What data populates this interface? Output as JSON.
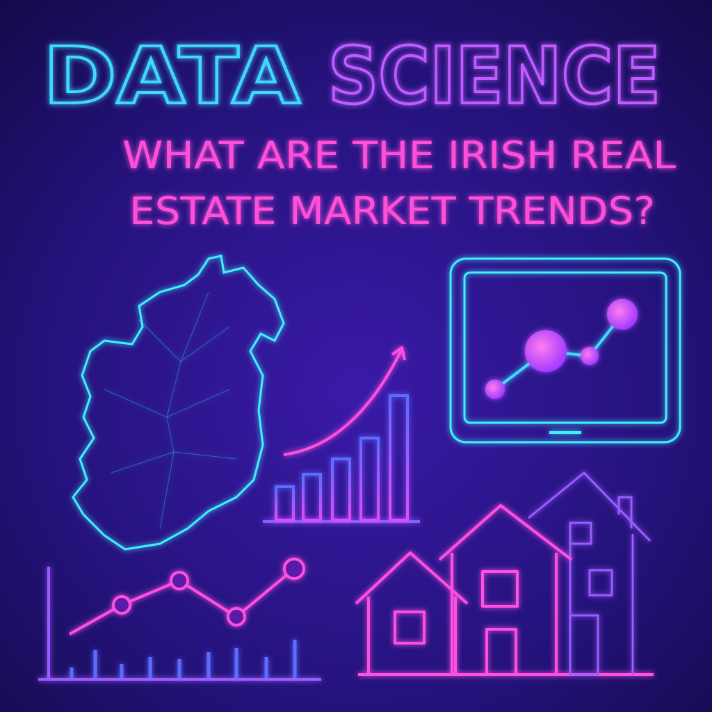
{
  "header": {
    "title_word1": "DATA",
    "title_word2": "SCIENCE",
    "question_lines": [
      "WHAT ARE THE IRISH REAL",
      "ESTATE MARKET TRENDS?"
    ]
  }
}
